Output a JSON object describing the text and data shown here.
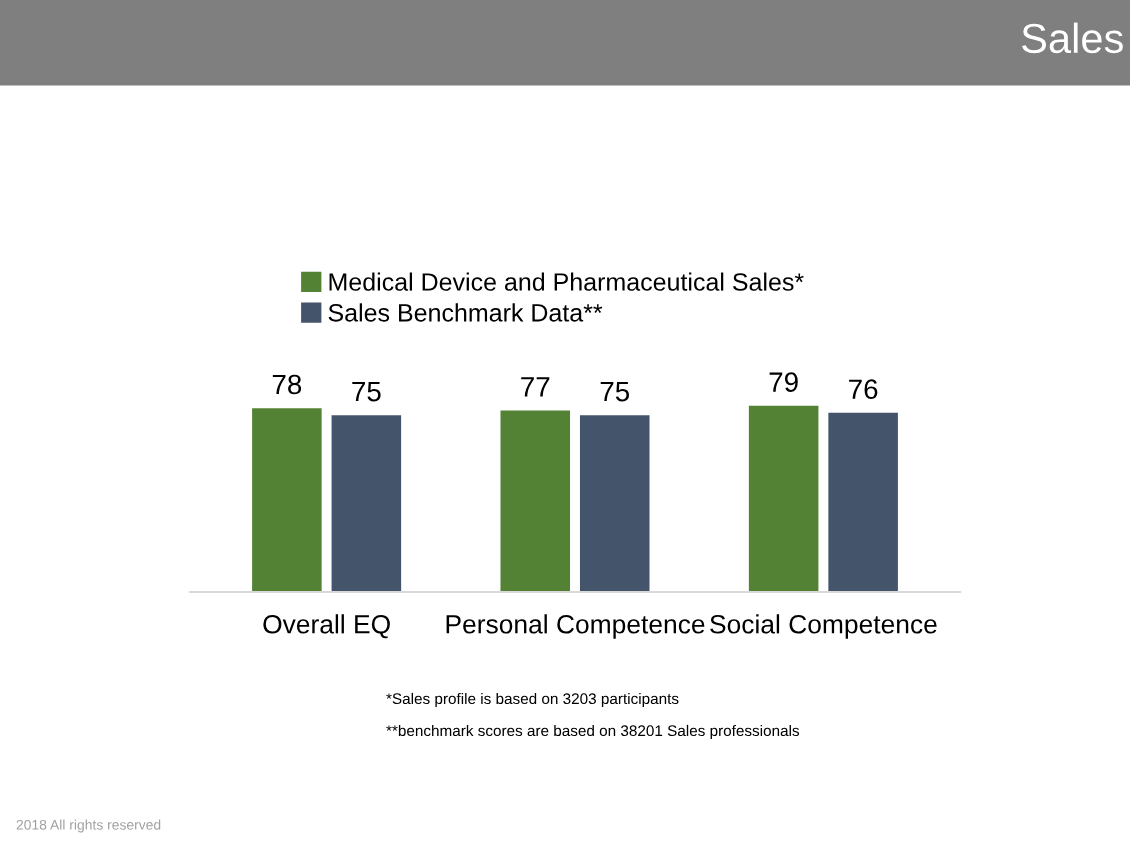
{
  "chart_data": {
    "type": "bar",
    "title": "Sales",
    "categories": [
      "Overall EQ",
      "Personal Competence",
      "Social Competence"
    ],
    "series": [
      {
        "name": "Medical Device and Pharmaceutical Sales*",
        "color": "#548235",
        "values": [
          78,
          77,
          79
        ]
      },
      {
        "name": "Sales Benchmark Data**",
        "color": "#44546a",
        "values": [
          75,
          75,
          76
        ]
      }
    ],
    "data_labels": true,
    "legend": "top left",
    "grid": false,
    "annotations": [
      "*Sales profile is based on 3203 participants",
      "**benchmark scores are based on 38201 Sales professionals",
      "2018 All rights reserved"
    ]
  }
}
